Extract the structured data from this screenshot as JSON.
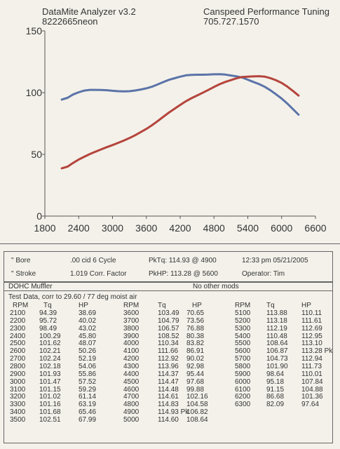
{
  "header": {
    "line1_left": "DataMite Analyzer v3.2",
    "line2_left": "8222665neon",
    "line1_right": "Canspeed Performance Tuning",
    "line2_right": "705.727.1570"
  },
  "chart_data": {
    "type": "line",
    "title": "",
    "xlabel": "",
    "ylabel": "",
    "xlim": [
      1800,
      6600
    ],
    "ylim": [
      0,
      150
    ],
    "x_ticks": [
      "1800",
      "2400",
      "3000",
      "3600",
      "4200",
      "4800",
      "5400",
      "6000",
      "6600"
    ],
    "y_ticks": [
      "0",
      "50",
      "100",
      "150"
    ],
    "grid": false,
    "x": [
      2100,
      2200,
      2300,
      2400,
      2500,
      2600,
      2700,
      2800,
      2900,
      3000,
      3100,
      3200,
      3300,
      3400,
      3500,
      3600,
      3700,
      3800,
      3900,
      4000,
      4100,
      4200,
      4300,
      4400,
      4500,
      4600,
      4700,
      4800,
      4900,
      5000,
      5100,
      5200,
      5300,
      5400,
      5500,
      5600,
      5700,
      5800,
      5900,
      6000,
      6100,
      6200,
      6300
    ],
    "series": [
      {
        "color": "#5b73a8",
        "values": [
          94.39,
          95.72,
          98.49,
          100.29,
          101.62,
          102.21,
          102.24,
          102.18,
          101.93,
          101.47,
          101.15,
          101.02,
          101.16,
          101.68,
          102.51,
          103.49,
          104.79,
          106.57,
          108.52,
          110.34,
          111.66,
          112.92,
          113.96,
          114.37,
          114.47,
          114.48,
          114.61,
          114.83,
          114.93,
          114.6,
          113.88,
          113.18,
          112.19,
          110.48,
          108.64,
          106.87,
          104.73,
          101.9,
          98.64,
          95.18,
          91.15,
          86.68,
          82.09
        ]
      },
      {
        "color": "#b5443c",
        "values": [
          38.69,
          40.02,
          43.02,
          45.8,
          48.07,
          50.26,
          52.19,
          54.06,
          55.86,
          57.52,
          59.29,
          61.14,
          63.19,
          65.46,
          67.99,
          70.65,
          73.56,
          76.88,
          80.38,
          83.82,
          86.91,
          90.02,
          92.98,
          95.44,
          97.68,
          99.88,
          102.16,
          104.58,
          106.82,
          108.64,
          110.11,
          111.61,
          112.69,
          112.95,
          113.1,
          113.28,
          112.94,
          111.73,
          110.01,
          107.84,
          104.88,
          101.36,
          97.64
        ]
      }
    ]
  },
  "info": {
    "bore_label": "\" Bore",
    "stroke_label": "\" Stroke",
    "cid": ".00 cid  6 Cycle",
    "corr_factor": "1.019 Corr. Factor",
    "pktq": "PkTq: 114.93 @  4900",
    "pkhp": "PkHP: 113.28 @  5600",
    "time": "12:33 pm  05/21/2005",
    "operator": "Operator: Tim",
    "muffler": "DOHC Muffler",
    "mods": "No other mods",
    "test_data": "Test Data, corr to 29.60 / 77 deg moist air"
  },
  "table": {
    "headers": [
      "RPM",
      "Tq",
      "HP"
    ],
    "col1": {
      "rpm": [
        "2100",
        "2200",
        "2300",
        "2400",
        "2500",
        "2600",
        "2700",
        "2800",
        "2900",
        "3000",
        "3100",
        "3200",
        "3300",
        "3400",
        "3500"
      ],
      "tq": [
        "94.39",
        "95.72",
        "98.49",
        "100.29",
        "101.62",
        "102.21",
        "102.24",
        "102.18",
        "101.93",
        "101.47",
        "101.15",
        "101.02",
        "101.16",
        "101.68",
        "102.51"
      ],
      "hp": [
        "38.69",
        "40.02",
        "43.02",
        "45.80",
        "48.07",
        "50.26",
        "52.19",
        "54.06",
        "55.86",
        "57.52",
        "59.29",
        "61.14",
        "63.19",
        "65.46",
        "67.99"
      ]
    },
    "col2": {
      "rpm": [
        "3600",
        "3700",
        "3800",
        "3900",
        "4000",
        "4100",
        "4200",
        "4300",
        "4400",
        "4500",
        "4600",
        "4700",
        "4800",
        "4900",
        "5000"
      ],
      "tq": [
        "103.49",
        "104.79",
        "106.57",
        "108.52",
        "110.34",
        "111.66",
        "112.92",
        "113.96",
        "114.37",
        "114.47",
        "114.48",
        "114.61",
        "114.83",
        "114.93 Pk",
        "114.60"
      ],
      "hp": [
        "70.65",
        "73.56",
        "76.88",
        "80.38",
        "83.82",
        "86.91",
        "90.02",
        "92.98",
        "95.44",
        "97.68",
        "99.88",
        "102.16",
        "104.58",
        "106.82",
        "108.64"
      ]
    },
    "col3": {
      "rpm": [
        "5100",
        "5200",
        "5300",
        "5400",
        "5500",
        "5600",
        "5700",
        "5800",
        "5900",
        "6000",
        "6100",
        "6200",
        "6300"
      ],
      "tq": [
        "113.88",
        "113.18",
        "112.19",
        "110.48",
        "108.64",
        "106.87",
        "104.73",
        "101.90",
        "98.64",
        "95.18",
        "91.15",
        "86.68",
        "82.09"
      ],
      "hp": [
        "110.11",
        "111.61",
        "112.69",
        "112.95",
        "113.10",
        "113.28 Pk",
        "112.94",
        "111.73",
        "110.01",
        "107.84",
        "104.88",
        "101.36",
        "97.64"
      ]
    }
  }
}
